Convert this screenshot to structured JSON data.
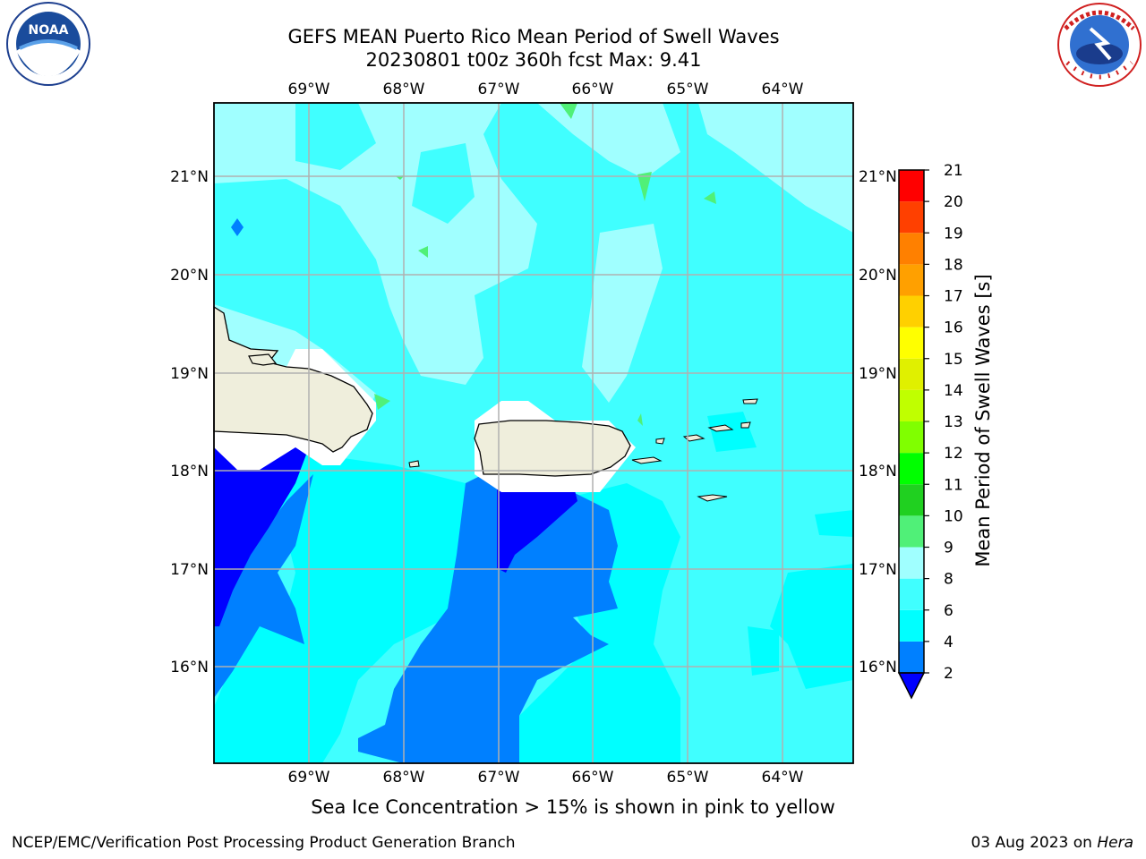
{
  "header": {
    "title_line1": "GEFS MEAN Puerto Rico Mean Period of Swell Waves",
    "title_line2": "20230801 t00z 360h fcst   Max: 9.41"
  },
  "logos": {
    "left": {
      "icon": "noaa-logo",
      "text": "NOAA"
    },
    "right": {
      "icon": "nws-logo",
      "ring_text": "NATIONAL WEATHER SERVICE"
    }
  },
  "map": {
    "lon_labels": [
      "69°W",
      "68°W",
      "67°W",
      "66°W",
      "65°W",
      "64°W"
    ],
    "lat_labels": [
      "21°N",
      "20°N",
      "19°N",
      "18°N",
      "17°N",
      "16°N"
    ],
    "lon_range": [
      -70,
      -63.25
    ],
    "lat_range": [
      15,
      21.75
    ]
  },
  "colorbar": {
    "label": "Mean Period of Swell Waves [s]",
    "ticks": [
      "2",
      "4",
      "6",
      "8",
      "9",
      "10",
      "11",
      "12",
      "13",
      "14",
      "15",
      "16",
      "17",
      "18",
      "19",
      "20",
      "21"
    ],
    "colors": [
      "#0000ff",
      "#0080ff",
      "#00ffff",
      "#40ffff",
      "#a0ffff",
      "#50f078",
      "#20d020",
      "#00ff00",
      "#80ff00",
      "#c0ff00",
      "#e0f000",
      "#ffff00",
      "#ffd000",
      "#ffa000",
      "#ff8000",
      "#ff4000",
      "#ff0000"
    ]
  },
  "footer": {
    "note": "Sea Ice Concentration > 15% is shown in pink to yellow",
    "credit": "NCEP/EMC/Verification Post Processing Product Generation Branch",
    "date": "03 Aug 2023 on ",
    "machine": "Hera"
  }
}
